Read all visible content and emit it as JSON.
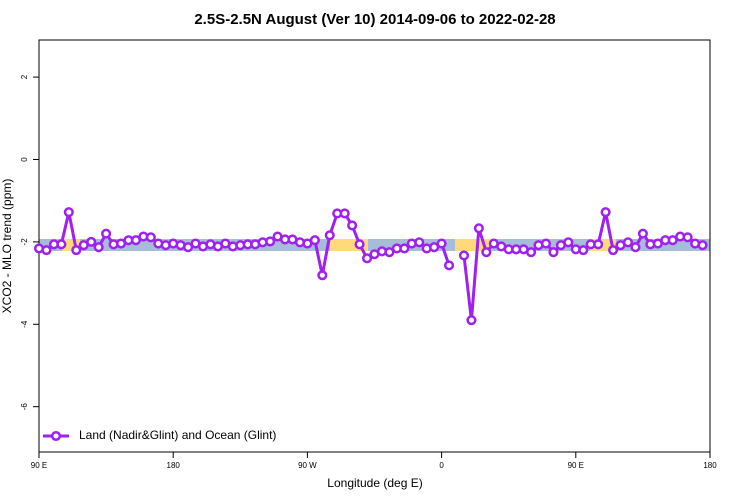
{
  "chart_data": {
    "type": "line",
    "title": "2.5S-2.5N August (Ver 10)   2014-09-06 to 2022-02-28",
    "x_label": "Longitude (deg E)",
    "y_label": "XCO2 - MLO trend (ppm)",
    "x": [
      90,
      95,
      100,
      105,
      110,
      115,
      120,
      125,
      130,
      135,
      140,
      145,
      150,
      155,
      160,
      165,
      170,
      175,
      180,
      185,
      190,
      195,
      200,
      205,
      210,
      215,
      220,
      225,
      230,
      235,
      240,
      245,
      250,
      255,
      260,
      265,
      270,
      275,
      280,
      285,
      290,
      295,
      300,
      305,
      310,
      315,
      320,
      325,
      330,
      335,
      340,
      345,
      350,
      355,
      360,
      365,
      370,
      375,
      380,
      385,
      390,
      395,
      400,
      405,
      410,
      415,
      420,
      425,
      430,
      435,
      440,
      445,
      450,
      455,
      460,
      465,
      470,
      475,
      480,
      485,
      490,
      495,
      500,
      505,
      510,
      515,
      520,
      525,
      530,
      535
    ],
    "series": [
      {
        "name": "Land (Nadir&Glint) and Ocean (Glint)",
        "color": "#a020f0",
        "values": [
          -2.16,
          -2.2,
          -2.06,
          -2.06,
          -1.28,
          -2.2,
          -2.08,
          -2.0,
          -2.13,
          -1.8,
          -2.06,
          -2.04,
          -1.96,
          -1.96,
          -1.87,
          -1.89,
          -2.04,
          -2.08,
          -2.04,
          -2.08,
          -2.13,
          -2.04,
          -2.11,
          -2.06,
          -2.11,
          -2.04,
          -2.11,
          -2.08,
          -2.06,
          -2.06,
          -2.01,
          -1.99,
          -1.87,
          -1.94,
          -1.94,
          -2.01,
          -2.04,
          -1.96,
          -2.81,
          -1.84,
          -1.31,
          -1.31,
          -1.6,
          -2.06,
          -2.4,
          -2.3,
          -2.23,
          -2.25,
          -2.16,
          -2.16,
          -2.04,
          -2.01,
          -2.16,
          -2.13,
          -2.04,
          -2.57,
          null,
          -2.33,
          -3.9,
          -1.67,
          -2.25,
          -2.04,
          -2.11,
          -2.18,
          -2.18,
          -2.18,
          -2.25,
          -2.08,
          -2.04,
          -2.25,
          -2.08,
          -2.01,
          -2.18,
          -2.2,
          -2.06,
          -2.06,
          -1.28,
          -2.2,
          -2.08,
          -2.01,
          -2.13,
          -1.8,
          -2.06,
          -2.04,
          -1.96,
          -1.96,
          -1.87,
          -1.89,
          -2.04,
          -2.08
        ]
      }
    ],
    "xlim": [
      90,
      540
    ],
    "ylim": [
      -7.1,
      2.9
    ],
    "xticks": [
      {
        "value": 90,
        "label": "90 E"
      },
      {
        "value": 180,
        "label": "180"
      },
      {
        "value": 270,
        "label": "90 W"
      },
      {
        "value": 360,
        "label": "0"
      },
      {
        "value": 450,
        "label": "90 E"
      },
      {
        "value": 540,
        "label": "180"
      }
    ],
    "yticks": [
      -6,
      -4,
      -2,
      0,
      2
    ],
    "legend": "bottom-left"
  }
}
